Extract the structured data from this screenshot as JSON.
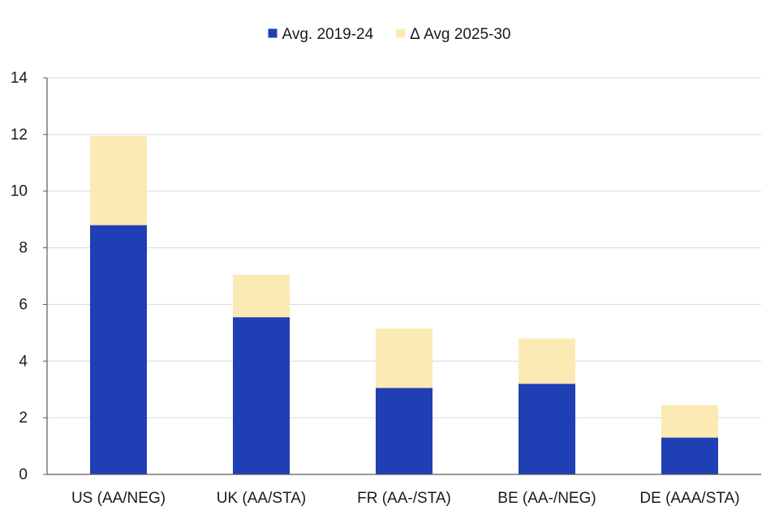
{
  "chart_data": {
    "type": "bar",
    "stacked": true,
    "categories": [
      "US (AA/NEG)",
      "UK (AA/STA)",
      "FR (AA-/STA)",
      "BE (AA-/NEG)",
      "DE (AAA/STA)"
    ],
    "series": [
      {
        "name": "Avg. 2019-24",
        "values": [
          8.8,
          5.55,
          3.05,
          3.2,
          1.3
        ],
        "color": "#1f3fb4"
      },
      {
        "name": "Δ Avg 2025-30",
        "values": [
          3.15,
          1.5,
          2.1,
          1.6,
          1.15
        ],
        "color": "#fbeab4"
      }
    ],
    "title": "",
    "xlabel": "",
    "ylabel": "",
    "ylim": [
      0,
      14
    ],
    "yticks": [
      0,
      2,
      4,
      6,
      8,
      10,
      12,
      14
    ],
    "grid": true,
    "legend_position": "top-center"
  }
}
